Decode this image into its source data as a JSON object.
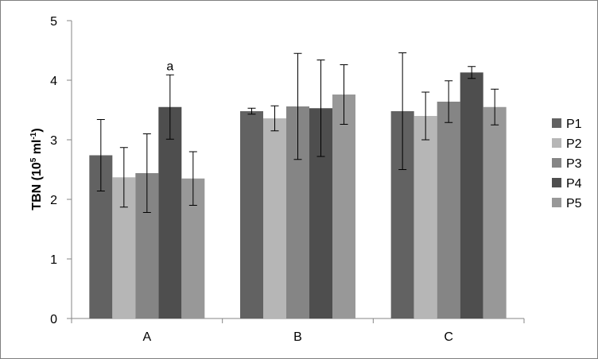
{
  "chart_data": {
    "type": "bar",
    "title": "",
    "xlabel": "",
    "ylabel": {
      "main": "TBN (10",
      "sup1": "5",
      "mid": " ml",
      "sup2": "-1",
      "end": ")"
    },
    "ylim": [
      0,
      5
    ],
    "yticks": [
      "0",
      "1",
      "2",
      "3",
      "4",
      "5"
    ],
    "grid": false,
    "legend_position": "right",
    "categories": [
      "A",
      "B",
      "C"
    ],
    "series": [
      {
        "name": "P1",
        "color": "#626262",
        "values": [
          2.74,
          3.48,
          3.48
        ],
        "errors": [
          0.6,
          0.05,
          0.98
        ]
      },
      {
        "name": "P2",
        "color": "#b6b6b6",
        "values": [
          2.37,
          3.36,
          3.4
        ],
        "errors": [
          0.5,
          0.21,
          0.4
        ]
      },
      {
        "name": "P3",
        "color": "#858585",
        "values": [
          2.44,
          3.56,
          3.64
        ],
        "errors": [
          0.66,
          0.89,
          0.35
        ]
      },
      {
        "name": "P4",
        "color": "#4e4e4e",
        "values": [
          3.55,
          3.53,
          4.13
        ],
        "errors": [
          0.54,
          0.81,
          0.1
        ]
      },
      {
        "name": "P5",
        "color": "#989898",
        "values": [
          2.35,
          3.76,
          3.55
        ],
        "errors": [
          0.45,
          0.5,
          0.3
        ]
      }
    ],
    "annotations": [
      {
        "text": "a",
        "category": "A",
        "series": "P4"
      }
    ]
  }
}
